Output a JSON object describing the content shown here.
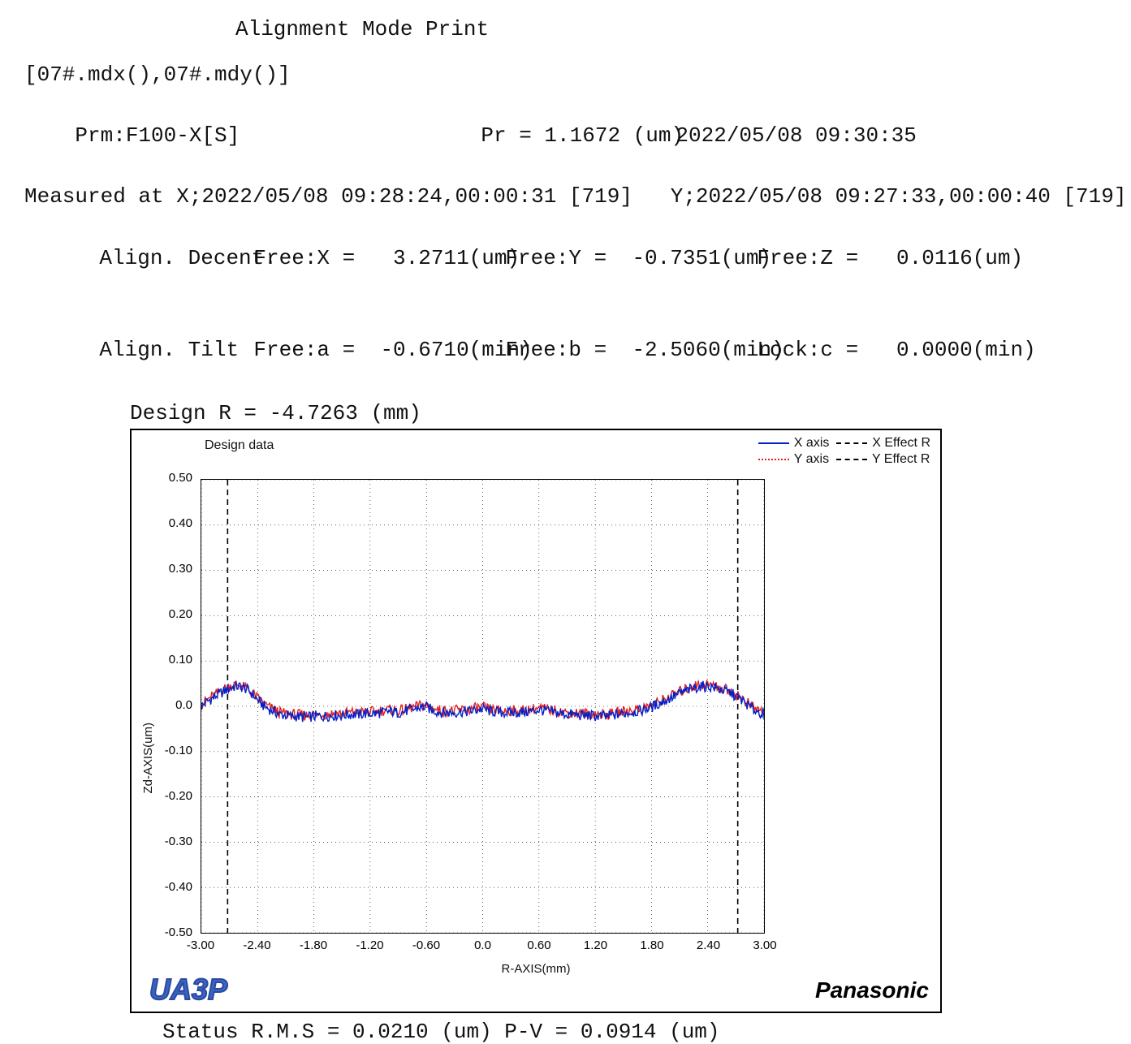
{
  "title": "Alignment Mode Print",
  "filesLine": "[07#.mdx(),07#.mdy()]",
  "prmLabel": "Prm:F100-X[S]",
  "prLabel": "Pr = 1.1672 (um)",
  "dateTime": "2022/05/08 09:30:35",
  "measuredLine": "Measured at X;2022/05/08 09:28:24,00:00:31 [719]   Y;2022/05/08 09:27:33,00:00:40 [719]",
  "alignDecent": {
    "label": "Align. Decent.",
    "x": "Free:X =   3.2711(um)",
    "y": "Free:Y =  -0.7351(um)",
    "z": "Free:Z =   0.0116(um)"
  },
  "alignTilt": {
    "label": "Align. Tilt",
    "a": "Free:a =  -0.6710(min)",
    "b": "Free:b =  -2.5060(min)",
    "c": "Lock:c =   0.0000(min)"
  },
  "designR": "Design   R =    -4.7263 (mm)",
  "chart": {
    "title": "Design data",
    "xlabel": "R-AXIS(mm)",
    "ylabel": "Zd-AXIS(um)",
    "xlim": [
      -3.0,
      3.0
    ],
    "ylim": [
      -0.5,
      0.5
    ],
    "xticks": [
      -3.0,
      -2.4,
      -1.8,
      -1.2,
      -0.6,
      0.0,
      0.6,
      1.2,
      1.8,
      2.4,
      3.0
    ],
    "yticks": [
      -0.5,
      -0.4,
      -0.3,
      -0.2,
      -0.1,
      0.0,
      0.1,
      0.2,
      0.3,
      0.4,
      0.5
    ],
    "gridColor": "#000",
    "gridDash": "1,4",
    "bg": "#ffffff",
    "legend": [
      {
        "label": "X axis",
        "color": "#0020cc",
        "dash": ""
      },
      {
        "label": "X Effect R",
        "color": "#000000",
        "dash": "4,3"
      },
      {
        "label": "Y axis",
        "color": "#e02020",
        "dash": "2,2"
      },
      {
        "label": "Y Effect R",
        "color": "#000000",
        "dash": "8,5"
      }
    ],
    "effectR_x": [
      -2.72,
      2.72
    ],
    "series": {
      "x_axis": {
        "color": "#0020cc",
        "width": 1.4,
        "dash": "",
        "pts": [
          [
            -3.0,
            0.0
          ],
          [
            -2.94,
            0.01
          ],
          [
            -2.88,
            0.018
          ],
          [
            -2.82,
            0.026
          ],
          [
            -2.76,
            0.033
          ],
          [
            -2.7,
            0.04
          ],
          [
            -2.64,
            0.044
          ],
          [
            -2.58,
            0.043
          ],
          [
            -2.52,
            0.038
          ],
          [
            -2.46,
            0.028
          ],
          [
            -2.4,
            0.014
          ],
          [
            -2.34,
            0.002
          ],
          [
            -2.28,
            -0.006
          ],
          [
            -2.22,
            -0.012
          ],
          [
            -2.16,
            -0.018
          ],
          [
            -2.1,
            -0.02
          ],
          [
            -2.04,
            -0.022
          ],
          [
            -1.98,
            -0.022
          ],
          [
            -1.92,
            -0.024
          ],
          [
            -1.86,
            -0.024
          ],
          [
            -1.8,
            -0.022
          ],
          [
            -1.74,
            -0.022
          ],
          [
            -1.68,
            -0.022
          ],
          [
            -1.62,
            -0.02
          ],
          [
            -1.56,
            -0.02
          ],
          [
            -1.5,
            -0.02
          ],
          [
            -1.44,
            -0.018
          ],
          [
            -1.38,
            -0.018
          ],
          [
            -1.32,
            -0.018
          ],
          [
            -1.26,
            -0.016
          ],
          [
            -1.2,
            -0.016
          ],
          [
            -1.14,
            -0.016
          ],
          [
            -1.08,
            -0.014
          ],
          [
            -1.02,
            -0.012
          ],
          [
            -0.96,
            -0.012
          ],
          [
            -0.9,
            -0.014
          ],
          [
            -0.84,
            -0.012
          ],
          [
            -0.78,
            -0.008
          ],
          [
            -0.72,
            -0.006
          ],
          [
            -0.66,
            -0.002
          ],
          [
            -0.6,
            -0.002
          ],
          [
            -0.54,
            -0.008
          ],
          [
            -0.48,
            -0.012
          ],
          [
            -0.42,
            -0.014
          ],
          [
            -0.36,
            -0.014
          ],
          [
            -0.3,
            -0.014
          ],
          [
            -0.24,
            -0.012
          ],
          [
            -0.18,
            -0.012
          ],
          [
            -0.12,
            -0.01
          ],
          [
            -0.06,
            -0.008
          ],
          [
            0.0,
            -0.006
          ],
          [
            0.06,
            -0.01
          ],
          [
            0.12,
            -0.012
          ],
          [
            0.18,
            -0.014
          ],
          [
            0.24,
            -0.014
          ],
          [
            0.3,
            -0.014
          ],
          [
            0.36,
            -0.014
          ],
          [
            0.42,
            -0.014
          ],
          [
            0.48,
            -0.012
          ],
          [
            0.54,
            -0.01
          ],
          [
            0.6,
            -0.008
          ],
          [
            0.66,
            -0.01
          ],
          [
            0.72,
            -0.012
          ],
          [
            0.78,
            -0.014
          ],
          [
            0.84,
            -0.016
          ],
          [
            0.9,
            -0.018
          ],
          [
            0.96,
            -0.018
          ],
          [
            1.02,
            -0.02
          ],
          [
            1.08,
            -0.02
          ],
          [
            1.14,
            -0.02
          ],
          [
            1.2,
            -0.022
          ],
          [
            1.26,
            -0.022
          ],
          [
            1.32,
            -0.022
          ],
          [
            1.38,
            -0.02
          ],
          [
            1.44,
            -0.018
          ],
          [
            1.5,
            -0.016
          ],
          [
            1.56,
            -0.014
          ],
          [
            1.62,
            -0.012
          ],
          [
            1.68,
            -0.01
          ],
          [
            1.74,
            -0.006
          ],
          [
            1.8,
            -0.002
          ],
          [
            1.86,
            0.004
          ],
          [
            1.92,
            0.01
          ],
          [
            1.98,
            0.016
          ],
          [
            2.04,
            0.022
          ],
          [
            2.1,
            0.028
          ],
          [
            2.16,
            0.033
          ],
          [
            2.22,
            0.038
          ],
          [
            2.28,
            0.042
          ],
          [
            2.34,
            0.044
          ],
          [
            2.4,
            0.044
          ],
          [
            2.46,
            0.042
          ],
          [
            2.52,
            0.038
          ],
          [
            2.58,
            0.034
          ],
          [
            2.64,
            0.03
          ],
          [
            2.7,
            0.022
          ],
          [
            2.76,
            0.014
          ],
          [
            2.82,
            0.004
          ],
          [
            2.88,
            -0.006
          ],
          [
            2.94,
            -0.012
          ],
          [
            3.0,
            -0.018
          ]
        ],
        "noise": 0.012
      },
      "y_axis": {
        "color": "#e02020",
        "width": 1.4,
        "dash": "",
        "pts": [
          [
            -3.0,
            0.004
          ],
          [
            -2.94,
            0.014
          ],
          [
            -2.88,
            0.022
          ],
          [
            -2.82,
            0.03
          ],
          [
            -2.76,
            0.038
          ],
          [
            -2.7,
            0.044
          ],
          [
            -2.64,
            0.048
          ],
          [
            -2.58,
            0.046
          ],
          [
            -2.52,
            0.04
          ],
          [
            -2.46,
            0.03
          ],
          [
            -2.4,
            0.018
          ],
          [
            -2.34,
            0.006
          ],
          [
            -2.28,
            -0.002
          ],
          [
            -2.22,
            -0.008
          ],
          [
            -2.16,
            -0.014
          ],
          [
            -2.1,
            -0.016
          ],
          [
            -2.04,
            -0.018
          ],
          [
            -1.98,
            -0.018
          ],
          [
            -1.92,
            -0.02
          ],
          [
            -1.86,
            -0.02
          ],
          [
            -1.8,
            -0.018
          ],
          [
            -1.74,
            -0.018
          ],
          [
            -1.68,
            -0.018
          ],
          [
            -1.62,
            -0.016
          ],
          [
            -1.56,
            -0.016
          ],
          [
            -1.5,
            -0.016
          ],
          [
            -1.44,
            -0.014
          ],
          [
            -1.38,
            -0.014
          ],
          [
            -1.32,
            -0.014
          ],
          [
            -1.26,
            -0.012
          ],
          [
            -1.2,
            -0.012
          ],
          [
            -1.14,
            -0.012
          ],
          [
            -1.08,
            -0.01
          ],
          [
            -1.02,
            -0.008
          ],
          [
            -0.96,
            -0.008
          ],
          [
            -0.9,
            -0.01
          ],
          [
            -0.84,
            -0.008
          ],
          [
            -0.78,
            -0.004
          ],
          [
            -0.72,
            -0.002
          ],
          [
            -0.66,
            0.002
          ],
          [
            -0.6,
            0.002
          ],
          [
            -0.54,
            -0.004
          ],
          [
            -0.48,
            -0.008
          ],
          [
            -0.42,
            -0.01
          ],
          [
            -0.36,
            -0.01
          ],
          [
            -0.3,
            -0.01
          ],
          [
            -0.24,
            -0.008
          ],
          [
            -0.18,
            -0.008
          ],
          [
            -0.12,
            -0.006
          ],
          [
            -0.06,
            -0.004
          ],
          [
            0.0,
            -0.002
          ],
          [
            0.06,
            -0.006
          ],
          [
            0.12,
            -0.008
          ],
          [
            0.18,
            -0.01
          ],
          [
            0.24,
            -0.01
          ],
          [
            0.3,
            -0.01
          ],
          [
            0.36,
            -0.01
          ],
          [
            0.42,
            -0.01
          ],
          [
            0.48,
            -0.008
          ],
          [
            0.54,
            -0.006
          ],
          [
            0.6,
            -0.004
          ],
          [
            0.66,
            -0.006
          ],
          [
            0.72,
            -0.008
          ],
          [
            0.78,
            -0.01
          ],
          [
            0.84,
            -0.012
          ],
          [
            0.9,
            -0.014
          ],
          [
            0.96,
            -0.014
          ],
          [
            1.02,
            -0.016
          ],
          [
            1.08,
            -0.016
          ],
          [
            1.14,
            -0.016
          ],
          [
            1.2,
            -0.018
          ],
          [
            1.26,
            -0.018
          ],
          [
            1.32,
            -0.018
          ],
          [
            1.38,
            -0.016
          ],
          [
            1.44,
            -0.014
          ],
          [
            1.5,
            -0.012
          ],
          [
            1.56,
            -0.01
          ],
          [
            1.62,
            -0.008
          ],
          [
            1.68,
            -0.006
          ],
          [
            1.74,
            -0.002
          ],
          [
            1.8,
            0.002
          ],
          [
            1.86,
            0.008
          ],
          [
            1.92,
            0.014
          ],
          [
            1.98,
            0.02
          ],
          [
            2.04,
            0.026
          ],
          [
            2.1,
            0.032
          ],
          [
            2.16,
            0.037
          ],
          [
            2.22,
            0.042
          ],
          [
            2.28,
            0.046
          ],
          [
            2.34,
            0.048
          ],
          [
            2.4,
            0.048
          ],
          [
            2.46,
            0.046
          ],
          [
            2.52,
            0.042
          ],
          [
            2.58,
            0.038
          ],
          [
            2.64,
            0.034
          ],
          [
            2.7,
            0.026
          ],
          [
            2.76,
            0.018
          ],
          [
            2.82,
            0.008
          ],
          [
            2.88,
            -0.002
          ],
          [
            2.94,
            -0.008
          ],
          [
            3.0,
            -0.014
          ]
        ],
        "noise": 0.012
      }
    }
  },
  "ua3p": "UA3P",
  "panasonic": "Panasonic",
  "statusLine": "Status   R.M.S = 0.0210 (um)  P-V = 0.0914 (um)"
}
